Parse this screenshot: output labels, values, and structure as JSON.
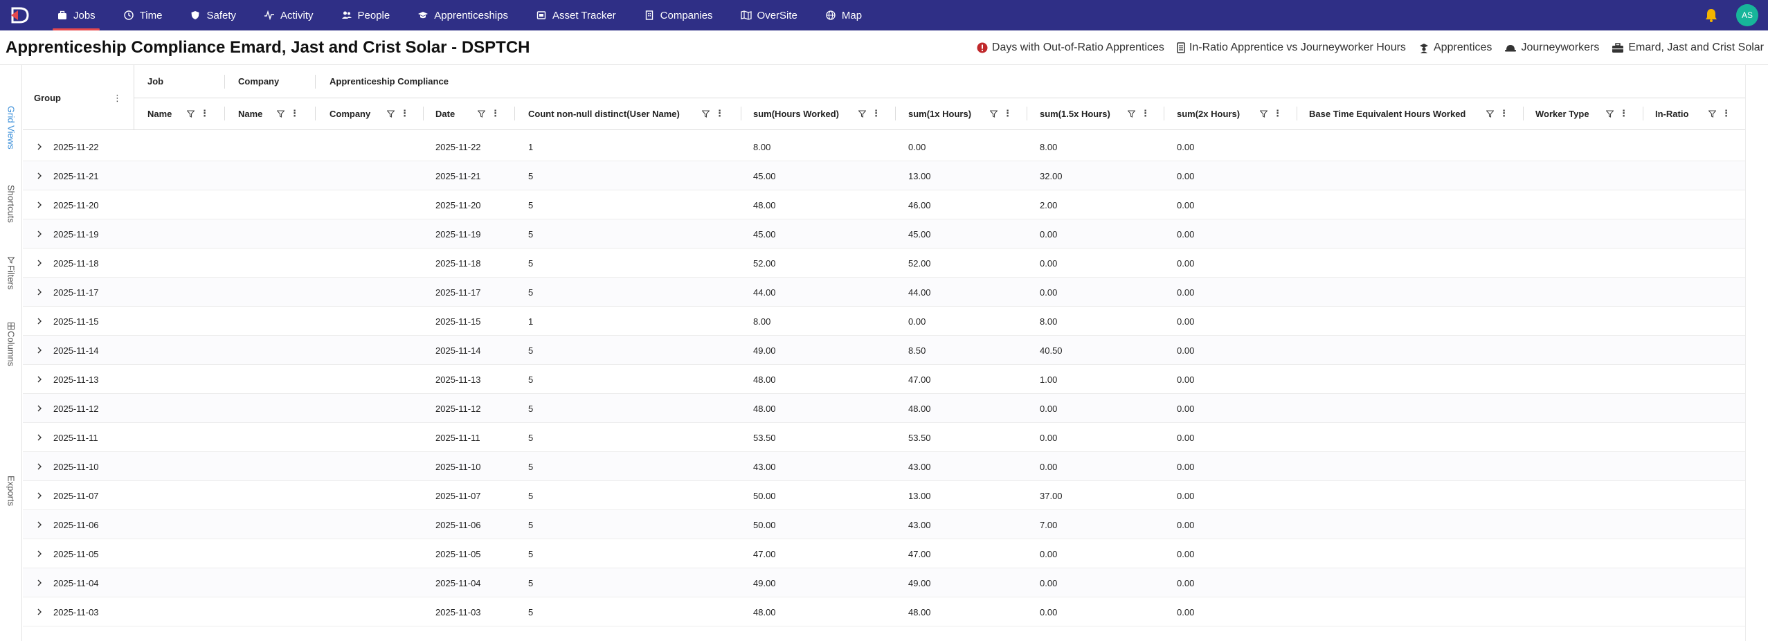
{
  "nav": {
    "items": [
      {
        "label": "Jobs",
        "icon": "briefcase-icon",
        "active": true
      },
      {
        "label": "Time",
        "icon": "clock-icon"
      },
      {
        "label": "Safety",
        "icon": "shield-icon"
      },
      {
        "label": "Activity",
        "icon": "activity-icon"
      },
      {
        "label": "People",
        "icon": "people-icon"
      },
      {
        "label": "Apprenticeships",
        "icon": "graduation-cap-icon"
      },
      {
        "label": "Asset Tracker",
        "icon": "asset-tag-icon"
      },
      {
        "label": "Companies",
        "icon": "building-icon"
      },
      {
        "label": "OverSite",
        "icon": "map-book-icon"
      },
      {
        "label": "Map",
        "icon": "globe-icon"
      }
    ],
    "avatar_initials": "AS",
    "accent": "#e5484d",
    "bar_color": "#2f2f86",
    "avatar_color": "#17b59a",
    "bell_color": "#f4b400"
  },
  "page": {
    "title": "Apprenticeship Compliance Emard, Jast and Crist Solar - DSPTCH",
    "legend": [
      {
        "label": "Days with Out-of-Ratio Apprentices",
        "icon": "alert-circle-icon"
      },
      {
        "label": "In-Ratio Apprentice vs Journeyworker Hours",
        "icon": "document-icon"
      },
      {
        "label": "Apprentices",
        "icon": "apprentice-icon"
      },
      {
        "label": "Journeyworkers",
        "icon": "hardhat-icon"
      },
      {
        "label": "Emard, Jast and Crist Solar",
        "icon": "toolbox-icon"
      }
    ]
  },
  "sidetabs": [
    {
      "label": "Grid Views",
      "active": true
    },
    {
      "label": "Shortcuts"
    },
    {
      "label": "Filters",
      "icon": "filter-icon"
    },
    {
      "label": "Columns",
      "icon": "columns-icon"
    },
    {
      "label": "Exports"
    }
  ],
  "grid": {
    "group_header": "Group",
    "group_headers": {
      "job": "Job",
      "company": "Company",
      "apprenticeship_compliance": "Apprenticeship Compliance"
    },
    "columns": {
      "job_name": "Name",
      "company_name": "Name",
      "company": "Company",
      "date": "Date",
      "count": "Count non-null distinct(User Name)",
      "hours_worked": "sum(Hours Worked)",
      "hours_1x": "sum(1x Hours)",
      "hours_15x": "sum(1.5x Hours)",
      "hours_2x": "sum(2x Hours)",
      "base_time": "Base Time Equivalent Hours Worked",
      "worker_type": "Worker Type",
      "in_ratio": "In-Ratio"
    },
    "rows": [
      {
        "group": "2025-11-22",
        "date": "2025-11-22",
        "count": "1",
        "hours_worked": "8.00",
        "hours_1x": "0.00",
        "hours_15x": "8.00",
        "hours_2x": "0.00"
      },
      {
        "group": "2025-11-21",
        "date": "2025-11-21",
        "count": "5",
        "hours_worked": "45.00",
        "hours_1x": "13.00",
        "hours_15x": "32.00",
        "hours_2x": "0.00"
      },
      {
        "group": "2025-11-20",
        "date": "2025-11-20",
        "count": "5",
        "hours_worked": "48.00",
        "hours_1x": "46.00",
        "hours_15x": "2.00",
        "hours_2x": "0.00"
      },
      {
        "group": "2025-11-19",
        "date": "2025-11-19",
        "count": "5",
        "hours_worked": "45.00",
        "hours_1x": "45.00",
        "hours_15x": "0.00",
        "hours_2x": "0.00"
      },
      {
        "group": "2025-11-18",
        "date": "2025-11-18",
        "count": "5",
        "hours_worked": "52.00",
        "hours_1x": "52.00",
        "hours_15x": "0.00",
        "hours_2x": "0.00"
      },
      {
        "group": "2025-11-17",
        "date": "2025-11-17",
        "count": "5",
        "hours_worked": "44.00",
        "hours_1x": "44.00",
        "hours_15x": "0.00",
        "hours_2x": "0.00"
      },
      {
        "group": "2025-11-15",
        "date": "2025-11-15",
        "count": "1",
        "hours_worked": "8.00",
        "hours_1x": "0.00",
        "hours_15x": "8.00",
        "hours_2x": "0.00"
      },
      {
        "group": "2025-11-14",
        "date": "2025-11-14",
        "count": "5",
        "hours_worked": "49.00",
        "hours_1x": "8.50",
        "hours_15x": "40.50",
        "hours_2x": "0.00"
      },
      {
        "group": "2025-11-13",
        "date": "2025-11-13",
        "count": "5",
        "hours_worked": "48.00",
        "hours_1x": "47.00",
        "hours_15x": "1.00",
        "hours_2x": "0.00"
      },
      {
        "group": "2025-11-12",
        "date": "2025-11-12",
        "count": "5",
        "hours_worked": "48.00",
        "hours_1x": "48.00",
        "hours_15x": "0.00",
        "hours_2x": "0.00"
      },
      {
        "group": "2025-11-11",
        "date": "2025-11-11",
        "count": "5",
        "hours_worked": "53.50",
        "hours_1x": "53.50",
        "hours_15x": "0.00",
        "hours_2x": "0.00"
      },
      {
        "group": "2025-11-10",
        "date": "2025-11-10",
        "count": "5",
        "hours_worked": "43.00",
        "hours_1x": "43.00",
        "hours_15x": "0.00",
        "hours_2x": "0.00"
      },
      {
        "group": "2025-11-07",
        "date": "2025-11-07",
        "count": "5",
        "hours_worked": "50.00",
        "hours_1x": "13.00",
        "hours_15x": "37.00",
        "hours_2x": "0.00"
      },
      {
        "group": "2025-11-06",
        "date": "2025-11-06",
        "count": "5",
        "hours_worked": "50.00",
        "hours_1x": "43.00",
        "hours_15x": "7.00",
        "hours_2x": "0.00"
      },
      {
        "group": "2025-11-05",
        "date": "2025-11-05",
        "count": "5",
        "hours_worked": "47.00",
        "hours_1x": "47.00",
        "hours_15x": "0.00",
        "hours_2x": "0.00"
      },
      {
        "group": "2025-11-04",
        "date": "2025-11-04",
        "count": "5",
        "hours_worked": "49.00",
        "hours_1x": "49.00",
        "hours_15x": "0.00",
        "hours_2x": "0.00"
      },
      {
        "group": "2025-11-03",
        "date": "2025-11-03",
        "count": "5",
        "hours_worked": "48.00",
        "hours_1x": "48.00",
        "hours_15x": "0.00",
        "hours_2x": "0.00"
      }
    ]
  }
}
